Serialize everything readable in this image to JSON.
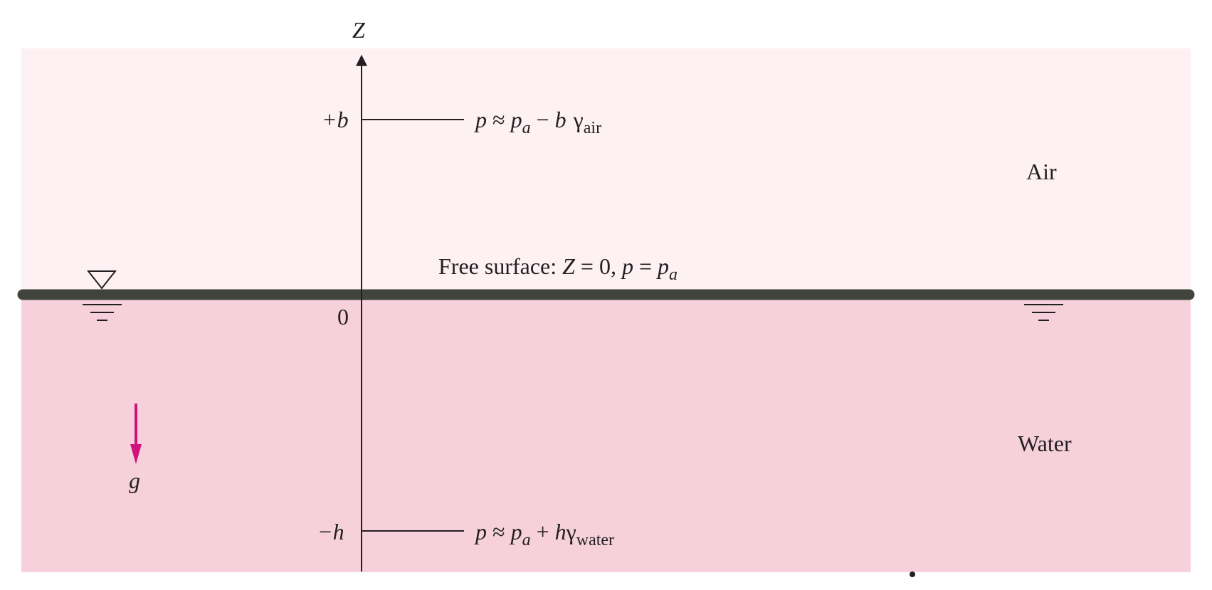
{
  "colors": {
    "air": "#fdf1f3",
    "water": "#f6d1db",
    "free_surface": "#40443c",
    "ink": "#231f20",
    "gravity": "#d0127b"
  },
  "axis": {
    "label": "Z",
    "plus_label": "+b",
    "zero_label": "0",
    "minus_label": "−h"
  },
  "regions": {
    "air_label": "Air",
    "water_label": "Water"
  },
  "free_surface": {
    "label_prefix": "Free surface: ",
    "label_z": "Z",
    "label_eq": " = 0",
    "label_comma": ",",
    "label_p": "p",
    "label_eq2": " = ",
    "label_pa": "p",
    "label_sub": "a"
  },
  "equations": {
    "upper": {
      "p": "p",
      "approx": " ≈ ",
      "pa": "p",
      "pa_sub": "a",
      "op": " − ",
      "b": "b",
      "gamma": "γ",
      "gamma_sub": "air"
    },
    "lower": {
      "p": "p",
      "approx": " ≈ ",
      "pa": "p",
      "pa_sub": "a",
      "op": " + ",
      "h": "h",
      "gamma": "γ",
      "gamma_sub": "water"
    }
  },
  "gravity": {
    "label": "g",
    "icon": "down-arrow-icon"
  },
  "surface_symbol": {
    "icon": "free-surface-triangle-icon"
  }
}
